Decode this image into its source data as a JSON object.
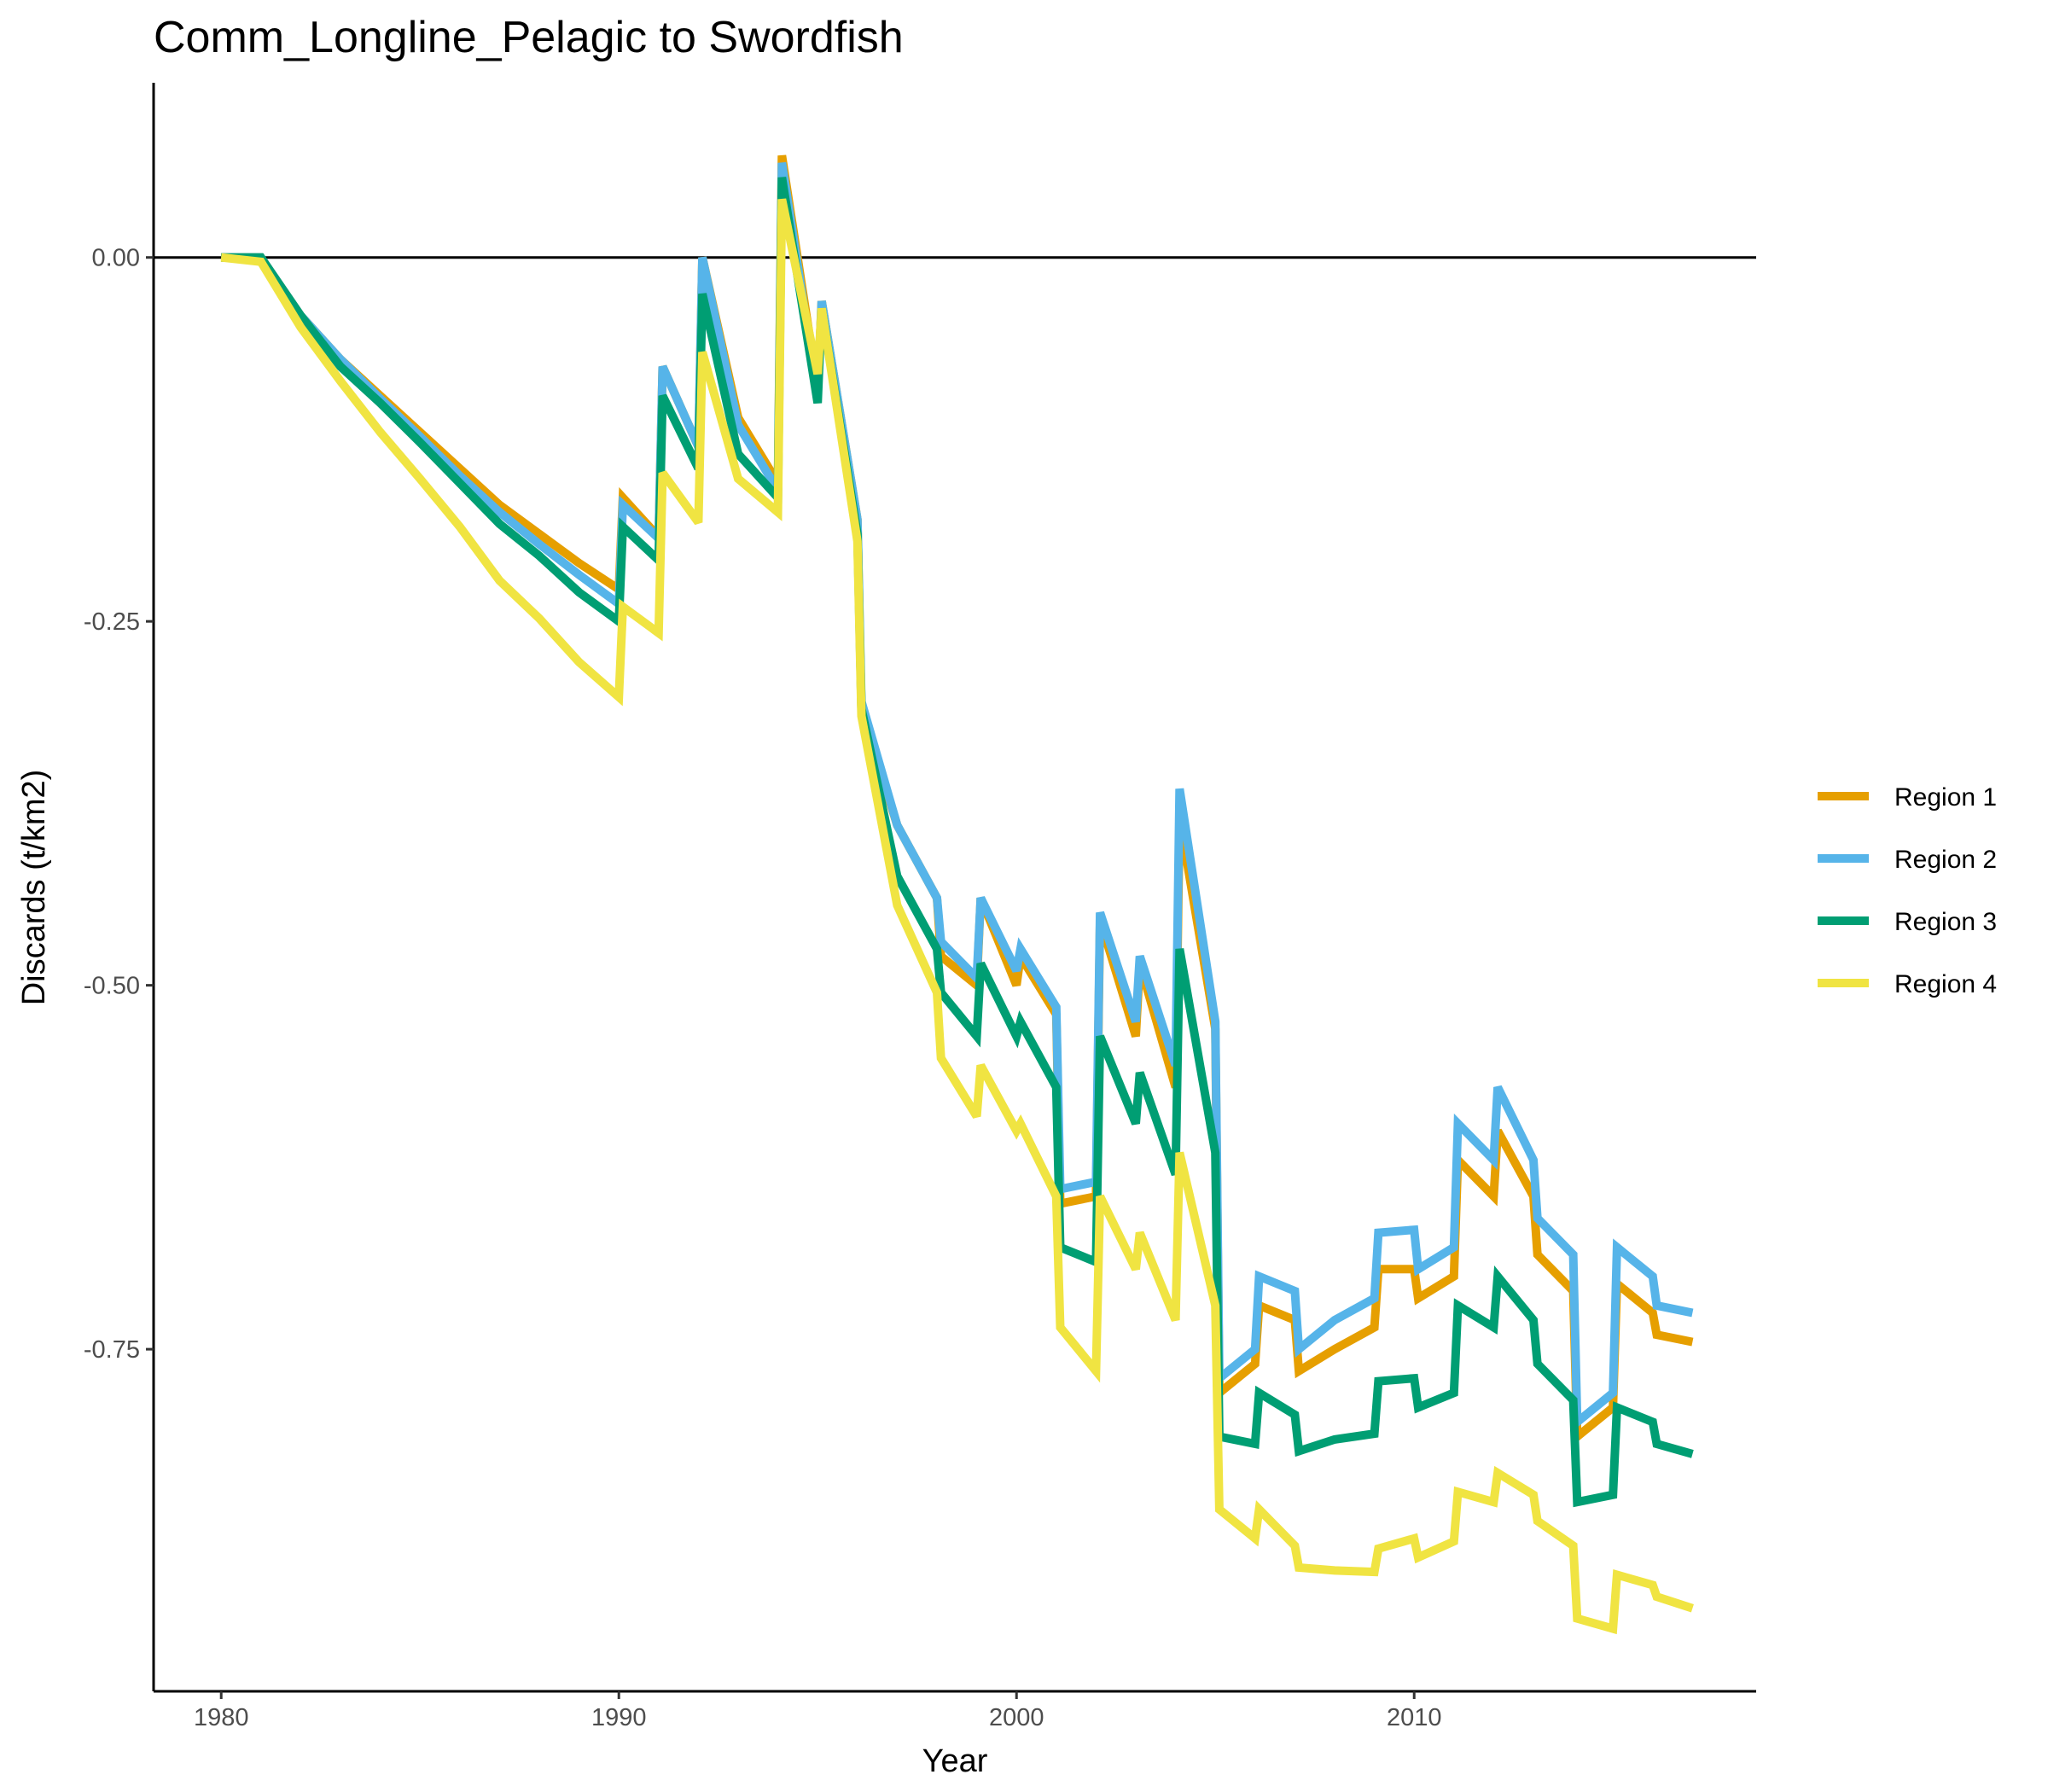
{
  "chart_data": {
    "type": "line",
    "title": "Comm_Longline_Pelagic to Swordfish",
    "xlabel": "Year",
    "ylabel": "Discards (t/km2)",
    "xlim": [
      1978.3,
      2018.6
    ],
    "ylim": [
      -0.985,
      0.12
    ],
    "xticks": [
      1980,
      1990,
      2000,
      2010
    ],
    "xtick_labels": [
      "1980",
      "1990",
      "2000",
      "2010"
    ],
    "yticks": [
      0,
      -0.25,
      -0.5,
      -0.75
    ],
    "ytick_labels": [
      "0.00",
      "-0.25",
      "-0.50",
      "-0.75"
    ],
    "hline": 0,
    "grid": false,
    "legend_position": "right",
    "series": [
      {
        "name": "Region 1",
        "color": "#E69F00",
        "points": [
          [
            1980,
            0
          ],
          [
            1981,
            0
          ],
          [
            1982,
            -0.04
          ],
          [
            1983,
            -0.07
          ],
          [
            1984,
            -0.095
          ],
          [
            1985,
            -0.12
          ],
          [
            1986,
            -0.145
          ],
          [
            1987,
            -0.17
          ],
          [
            1988,
            -0.19
          ],
          [
            1989,
            -0.21
          ],
          [
            1990,
            -0.228
          ],
          [
            1990.1,
            -0.165
          ],
          [
            1991,
            -0.192
          ],
          [
            1991.1,
            -0.075
          ],
          [
            1992,
            -0.13
          ],
          [
            1992.1,
            0
          ],
          [
            1993,
            -0.11
          ],
          [
            1994,
            -0.155
          ],
          [
            1994.1,
            0.07
          ],
          [
            1995,
            -0.09
          ],
          [
            1995.1,
            -0.03
          ],
          [
            1996,
            -0.18
          ],
          [
            1996.1,
            -0.31
          ],
          [
            1997,
            -0.39
          ],
          [
            1998,
            -0.44
          ],
          [
            1998.1,
            -0.48
          ],
          [
            1999,
            -0.5
          ],
          [
            1999.1,
            -0.44
          ],
          [
            2000,
            -0.5
          ],
          [
            2000.1,
            -0.48
          ],
          [
            2001,
            -0.52
          ],
          [
            2001.1,
            -0.65
          ],
          [
            2002,
            -0.645
          ],
          [
            2002.1,
            -0.455
          ],
          [
            2003,
            -0.535
          ],
          [
            2003.1,
            -0.485
          ],
          [
            2004,
            -0.57
          ],
          [
            2004.1,
            -0.385
          ],
          [
            2005,
            -0.53
          ],
          [
            2005.1,
            -0.78
          ],
          [
            2006,
            -0.76
          ],
          [
            2006.1,
            -0.72
          ],
          [
            2007,
            -0.73
          ],
          [
            2007.1,
            -0.765
          ],
          [
            2008,
            -0.75
          ],
          [
            2009,
            -0.735
          ],
          [
            2009.1,
            -0.695
          ],
          [
            2010,
            -0.695
          ],
          [
            2010.1,
            -0.715
          ],
          [
            2011,
            -0.7
          ],
          [
            2011.1,
            -0.62
          ],
          [
            2012,
            -0.645
          ],
          [
            2012.1,
            -0.6
          ],
          [
            2013,
            -0.645
          ],
          [
            2013.1,
            -0.685
          ],
          [
            2014,
            -0.71
          ],
          [
            2014.1,
            -0.81
          ],
          [
            2015,
            -0.79
          ],
          [
            2015.1,
            -0.705
          ],
          [
            2016,
            -0.725
          ],
          [
            2016.1,
            -0.74
          ],
          [
            2017,
            -0.745
          ]
        ]
      },
      {
        "name": "Region 2",
        "color": "#56B4E9",
        "points": [
          [
            1980,
            0
          ],
          [
            1981,
            0
          ],
          [
            1982,
            -0.04
          ],
          [
            1983,
            -0.07
          ],
          [
            1984,
            -0.097
          ],
          [
            1985,
            -0.123
          ],
          [
            1986,
            -0.15
          ],
          [
            1987,
            -0.175
          ],
          [
            1988,
            -0.197
          ],
          [
            1989,
            -0.218
          ],
          [
            1990,
            -0.238
          ],
          [
            1990.1,
            -0.17
          ],
          [
            1991,
            -0.193
          ],
          [
            1991.1,
            -0.075
          ],
          [
            1992,
            -0.13
          ],
          [
            1992.1,
            0
          ],
          [
            1993,
            -0.115
          ],
          [
            1994,
            -0.16
          ],
          [
            1994.1,
            0.065
          ],
          [
            1995,
            -0.095
          ],
          [
            1995.1,
            -0.03
          ],
          [
            1996,
            -0.18
          ],
          [
            1996.1,
            -0.305
          ],
          [
            1997,
            -0.39
          ],
          [
            1998,
            -0.44
          ],
          [
            1998.1,
            -0.47
          ],
          [
            1999,
            -0.495
          ],
          [
            1999.1,
            -0.44
          ],
          [
            2000,
            -0.49
          ],
          [
            2000.1,
            -0.475
          ],
          [
            2001,
            -0.515
          ],
          [
            2001.1,
            -0.64
          ],
          [
            2002,
            -0.635
          ],
          [
            2002.1,
            -0.45
          ],
          [
            2003,
            -0.525
          ],
          [
            2003.1,
            -0.48
          ],
          [
            2004,
            -0.555
          ],
          [
            2004.1,
            -0.365
          ],
          [
            2005,
            -0.525
          ],
          [
            2005.1,
            -0.77
          ],
          [
            2006,
            -0.75
          ],
          [
            2006.1,
            -0.7
          ],
          [
            2007,
            -0.71
          ],
          [
            2007.1,
            -0.75
          ],
          [
            2008,
            -0.73
          ],
          [
            2009,
            -0.715
          ],
          [
            2009.1,
            -0.67
          ],
          [
            2010,
            -0.668
          ],
          [
            2010.1,
            -0.695
          ],
          [
            2011,
            -0.68
          ],
          [
            2011.1,
            -0.595
          ],
          [
            2012,
            -0.62
          ],
          [
            2012.1,
            -0.57
          ],
          [
            2013,
            -0.62
          ],
          [
            2013.1,
            -0.66
          ],
          [
            2014,
            -0.685
          ],
          [
            2014.1,
            -0.8
          ],
          [
            2015,
            -0.78
          ],
          [
            2015.1,
            -0.68
          ],
          [
            2016,
            -0.7
          ],
          [
            2016.1,
            -0.72
          ],
          [
            2017,
            -0.725
          ]
        ]
      },
      {
        "name": "Region 3",
        "color": "#009E73",
        "points": [
          [
            1980,
            0
          ],
          [
            1981,
            0
          ],
          [
            1982,
            -0.04
          ],
          [
            1983,
            -0.075
          ],
          [
            1984,
            -0.1
          ],
          [
            1985,
            -0.127
          ],
          [
            1986,
            -0.155
          ],
          [
            1987,
            -0.183
          ],
          [
            1988,
            -0.205
          ],
          [
            1989,
            -0.23
          ],
          [
            1990,
            -0.25
          ],
          [
            1990.1,
            -0.185
          ],
          [
            1991,
            -0.208
          ],
          [
            1991.1,
            -0.095
          ],
          [
            1992,
            -0.145
          ],
          [
            1992.1,
            -0.025
          ],
          [
            1993,
            -0.135
          ],
          [
            1994,
            -0.165
          ],
          [
            1994.1,
            0.055
          ],
          [
            1995,
            -0.1
          ],
          [
            1995.1,
            -0.035
          ],
          [
            1996,
            -0.19
          ],
          [
            1996.1,
            -0.31
          ],
          [
            1997,
            -0.425
          ],
          [
            1998,
            -0.475
          ],
          [
            1998.1,
            -0.505
          ],
          [
            1999,
            -0.535
          ],
          [
            1999.1,
            -0.485
          ],
          [
            2000,
            -0.535
          ],
          [
            2000.1,
            -0.525
          ],
          [
            2001,
            -0.57
          ],
          [
            2001.1,
            -0.68
          ],
          [
            2002,
            -0.69
          ],
          [
            2002.1,
            -0.535
          ],
          [
            2003,
            -0.595
          ],
          [
            2003.1,
            -0.56
          ],
          [
            2004,
            -0.63
          ],
          [
            2004.1,
            -0.475
          ],
          [
            2005,
            -0.615
          ],
          [
            2005.1,
            -0.81
          ],
          [
            2006,
            -0.815
          ],
          [
            2006.1,
            -0.78
          ],
          [
            2007,
            -0.795
          ],
          [
            2007.1,
            -0.82
          ],
          [
            2008,
            -0.812
          ],
          [
            2009,
            -0.808
          ],
          [
            2009.1,
            -0.772
          ],
          [
            2010,
            -0.77
          ],
          [
            2010.1,
            -0.79
          ],
          [
            2011,
            -0.78
          ],
          [
            2011.1,
            -0.72
          ],
          [
            2012,
            -0.735
          ],
          [
            2012.1,
            -0.7
          ],
          [
            2013,
            -0.73
          ],
          [
            2013.1,
            -0.76
          ],
          [
            2014,
            -0.785
          ],
          [
            2014.1,
            -0.855
          ],
          [
            2015,
            -0.85
          ],
          [
            2015.1,
            -0.79
          ],
          [
            2016,
            -0.8
          ],
          [
            2016.1,
            -0.815
          ],
          [
            2017,
            -0.822
          ]
        ]
      },
      {
        "name": "Region 4",
        "color": "#F0E442",
        "points": [
          [
            1980,
            0
          ],
          [
            1981,
            -0.003
          ],
          [
            1982,
            -0.048
          ],
          [
            1983,
            -0.085
          ],
          [
            1984,
            -0.12
          ],
          [
            1985,
            -0.152
          ],
          [
            1986,
            -0.185
          ],
          [
            1987,
            -0.222
          ],
          [
            1988,
            -0.248
          ],
          [
            1989,
            -0.278
          ],
          [
            1990,
            -0.302
          ],
          [
            1990.1,
            -0.24
          ],
          [
            1991,
            -0.258
          ],
          [
            1991.1,
            -0.148
          ],
          [
            1992,
            -0.182
          ],
          [
            1992.1,
            -0.065
          ],
          [
            1993,
            -0.152
          ],
          [
            1994,
            -0.175
          ],
          [
            1994.1,
            0.04
          ],
          [
            1995,
            -0.08
          ],
          [
            1995.1,
            -0.035
          ],
          [
            1996,
            -0.195
          ],
          [
            1996.1,
            -0.315
          ],
          [
            1997,
            -0.445
          ],
          [
            1998,
            -0.505
          ],
          [
            1998.1,
            -0.55
          ],
          [
            1999,
            -0.59
          ],
          [
            1999.1,
            -0.555
          ],
          [
            2000,
            -0.6
          ],
          [
            2000.1,
            -0.595
          ],
          [
            2001,
            -0.645
          ],
          [
            2001.1,
            -0.735
          ],
          [
            2002,
            -0.765
          ],
          [
            2002.1,
            -0.645
          ],
          [
            2003,
            -0.695
          ],
          [
            2003.1,
            -0.67
          ],
          [
            2004,
            -0.73
          ],
          [
            2004.1,
            -0.615
          ],
          [
            2005,
            -0.72
          ],
          [
            2005.1,
            -0.86
          ],
          [
            2006,
            -0.88
          ],
          [
            2006.1,
            -0.86
          ],
          [
            2007,
            -0.885
          ],
          [
            2007.1,
            -0.9
          ],
          [
            2008,
            -0.902
          ],
          [
            2009,
            -0.903
          ],
          [
            2009.1,
            -0.887
          ],
          [
            2010,
            -0.88
          ],
          [
            2010.1,
            -0.893
          ],
          [
            2011,
            -0.882
          ],
          [
            2011.1,
            -0.848
          ],
          [
            2012,
            -0.855
          ],
          [
            2012.1,
            -0.835
          ],
          [
            2013,
            -0.85
          ],
          [
            2013.1,
            -0.868
          ],
          [
            2014,
            -0.885
          ],
          [
            2014.1,
            -0.935
          ],
          [
            2015,
            -0.942
          ],
          [
            2015.1,
            -0.905
          ],
          [
            2016,
            -0.912
          ],
          [
            2016.1,
            -0.92
          ],
          [
            2017,
            -0.928
          ]
        ]
      }
    ]
  }
}
